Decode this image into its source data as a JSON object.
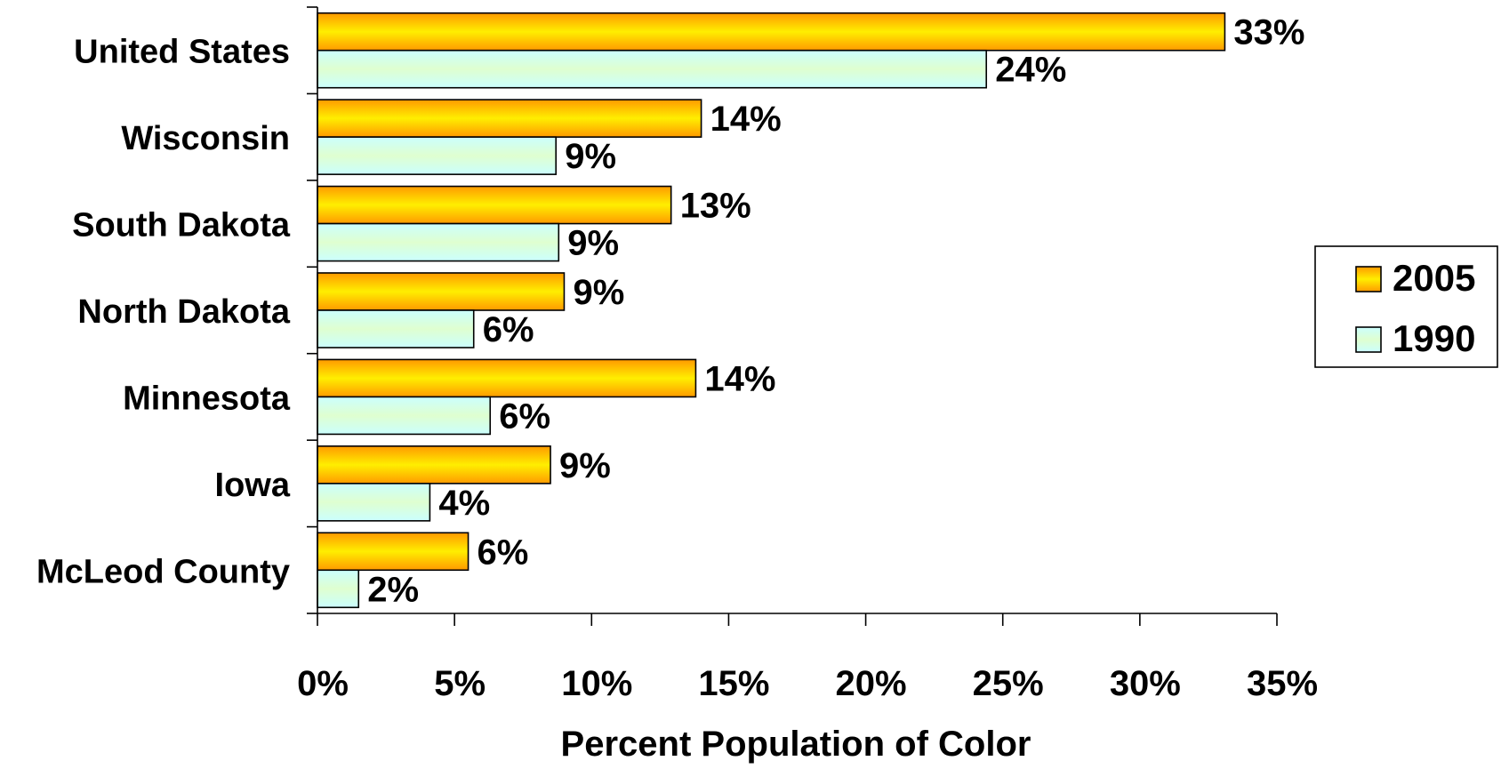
{
  "chart_data": {
    "type": "bar",
    "orientation": "horizontal",
    "categories": [
      "United States",
      "Wisconsin",
      "South Dakota",
      "North Dakota",
      "Minnesota",
      "Iowa",
      "McLeod County"
    ],
    "series": [
      {
        "name": "2005",
        "values": [
          33.1,
          14.0,
          12.9,
          9.0,
          13.8,
          8.5,
          5.5
        ],
        "labels": [
          "33%",
          "14%",
          "13%",
          "9%",
          "14%",
          "9%",
          "6%"
        ],
        "color": "#ffb000"
      },
      {
        "name": "1990",
        "values": [
          24.4,
          8.7,
          8.8,
          5.7,
          6.3,
          4.1,
          1.5
        ],
        "labels": [
          "24%",
          "9%",
          "9%",
          "6%",
          "6%",
          "4%",
          "2%"
        ],
        "color": "#ccffff"
      }
    ],
    "xlabel": "Percent Population of Color",
    "ylabel": "",
    "title": "",
    "xlim": [
      0,
      35
    ],
    "x_ticks": [
      0,
      5,
      10,
      15,
      20,
      25,
      30,
      35
    ],
    "x_tick_labels": [
      "0%",
      "5%",
      "10%",
      "15%",
      "20%",
      "25%",
      "30%",
      "35%"
    ],
    "grid": false,
    "legend": "right"
  }
}
